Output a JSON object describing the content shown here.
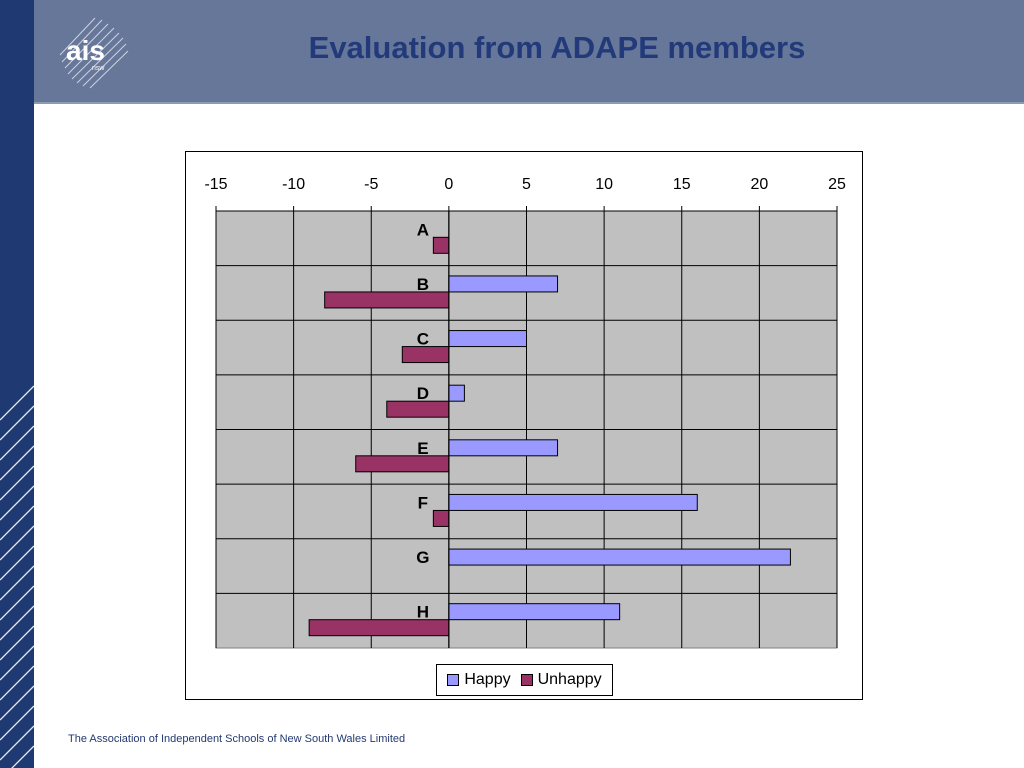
{
  "slide": {
    "title": "Evaluation from ADAPE members",
    "footer": "The Association of Independent Schools of New South Wales Limited",
    "logo_text": "ais",
    "logo_subtext": "nsw"
  },
  "colors": {
    "happy": "#9999ff",
    "unhappy": "#993366",
    "plot_bg": "#c0c0c0",
    "header_bg": "#66779a",
    "left_bar": "#1f3a73",
    "title": "#223a7a"
  },
  "chart_data": {
    "type": "bar",
    "orientation": "horizontal",
    "categories": [
      "A",
      "B",
      "C",
      "D",
      "E",
      "F",
      "G",
      "H"
    ],
    "series": [
      {
        "name": "Happy",
        "values": [
          0,
          7,
          5,
          1,
          7,
          16,
          22,
          11
        ]
      },
      {
        "name": "Unhappy",
        "values": [
          -1,
          -8,
          -3,
          -4,
          -6,
          -1,
          0,
          -9
        ]
      }
    ],
    "xlim": [
      -15,
      25
    ],
    "xticks": [
      -15,
      -10,
      -5,
      0,
      5,
      10,
      15,
      20,
      25
    ],
    "x_axis_position": "top",
    "grid": true,
    "legend_position": "bottom"
  }
}
